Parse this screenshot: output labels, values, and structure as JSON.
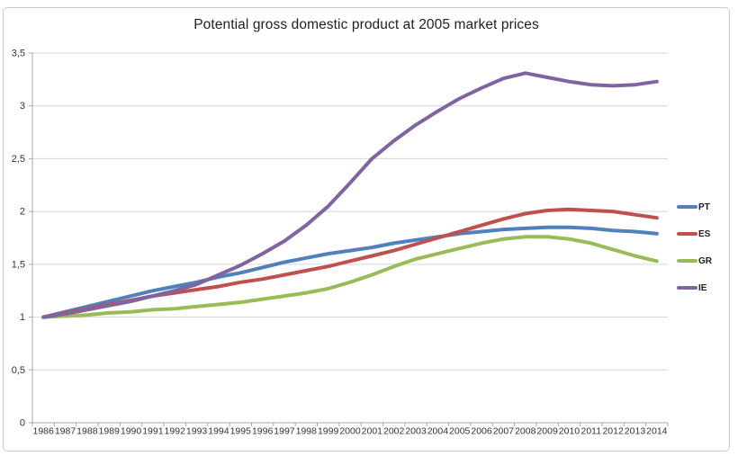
{
  "chart_data": {
    "type": "line",
    "title": "Potential gross domestic product at 2005 market prices",
    "x": [
      1986,
      1987,
      1988,
      1989,
      1990,
      1991,
      1992,
      1993,
      1994,
      1995,
      1996,
      1997,
      1998,
      1999,
      2000,
      2001,
      2002,
      2003,
      2004,
      2005,
      2006,
      2007,
      2008,
      2009,
      2010,
      2011,
      2012,
      2013,
      2014
    ],
    "series": [
      {
        "name": "PT",
        "color": "#4F81BD",
        "values": [
          1.0,
          1.05,
          1.1,
          1.15,
          1.2,
          1.25,
          1.29,
          1.33,
          1.38,
          1.42,
          1.47,
          1.52,
          1.56,
          1.6,
          1.63,
          1.66,
          1.7,
          1.73,
          1.76,
          1.79,
          1.81,
          1.83,
          1.84,
          1.85,
          1.85,
          1.84,
          1.82,
          1.81,
          1.79
        ]
      },
      {
        "name": "ES",
        "color": "#C0504D",
        "values": [
          1.0,
          1.04,
          1.08,
          1.12,
          1.16,
          1.2,
          1.23,
          1.26,
          1.29,
          1.33,
          1.36,
          1.4,
          1.44,
          1.48,
          1.53,
          1.58,
          1.63,
          1.69,
          1.75,
          1.81,
          1.87,
          1.93,
          1.98,
          2.01,
          2.02,
          2.01,
          2.0,
          1.97,
          1.94
        ]
      },
      {
        "name": "GR",
        "color": "#9BBB59",
        "values": [
          1.0,
          1.01,
          1.02,
          1.04,
          1.05,
          1.07,
          1.08,
          1.1,
          1.12,
          1.14,
          1.17,
          1.2,
          1.23,
          1.27,
          1.33,
          1.4,
          1.48,
          1.55,
          1.6,
          1.65,
          1.7,
          1.74,
          1.76,
          1.76,
          1.74,
          1.7,
          1.64,
          1.58,
          1.53
        ]
      },
      {
        "name": "IE",
        "color": "#8064A2",
        "values": [
          1.0,
          1.03,
          1.07,
          1.11,
          1.15,
          1.2,
          1.25,
          1.31,
          1.4,
          1.49,
          1.6,
          1.72,
          1.87,
          2.05,
          2.27,
          2.5,
          2.67,
          2.82,
          2.95,
          3.07,
          3.17,
          3.26,
          3.31,
          3.27,
          3.23,
          3.2,
          3.19,
          3.2,
          3.23
        ]
      }
    ],
    "ylim": [
      0,
      3.5
    ],
    "y_ticks": [
      0,
      0.5,
      1,
      1.5,
      2,
      2.5,
      3,
      3.5
    ],
    "y_tick_labels": [
      "0",
      "0,5",
      "1",
      "1,5",
      "2",
      "2,5",
      "3",
      "3,5"
    ],
    "grid": true,
    "legend_position": "right",
    "decimal_separator": ","
  },
  "colors": {
    "background": "#FFFFFF",
    "frame_border": "#C9C9C9",
    "gridline": "#D6D6D6",
    "axis": "#A9A9A9",
    "tick_text": "#333333",
    "title_text": "#1F1F1F"
  }
}
